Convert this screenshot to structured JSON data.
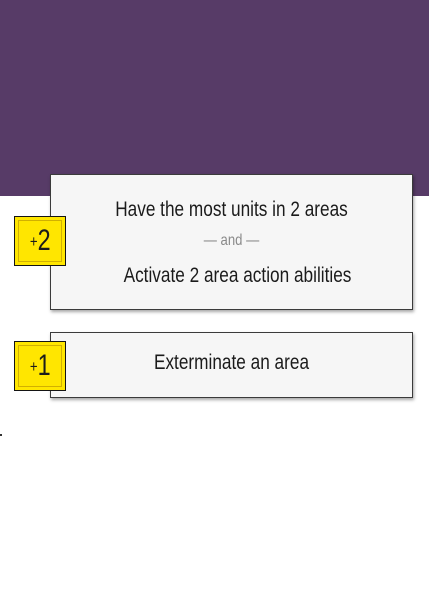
{
  "colors": {
    "header_band": "#573b67",
    "card_background": "#f6f6f6",
    "badge_yellow": "#ffe600",
    "text": "#1b1b1b",
    "conjunction_text": "#8a8a8a"
  },
  "objectives": [
    {
      "points_plus": "+",
      "points_value": "2",
      "lines": [
        "Have the most units in 2 areas",
        "Activate 2 area action abilities"
      ],
      "conjunction": "— and —"
    },
    {
      "points_plus": "+",
      "points_value": "1",
      "lines": [
        "Exterminate an area"
      ]
    }
  ]
}
